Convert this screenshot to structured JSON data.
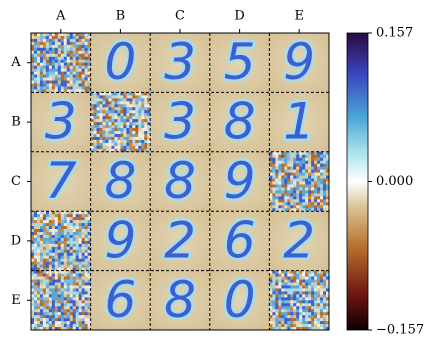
{
  "chart_data": {
    "type": "image_grid",
    "x_categories": [
      "A",
      "B",
      "C",
      "D",
      "E"
    ],
    "y_categories": [
      "A",
      "B",
      "C",
      "D",
      "E"
    ],
    "cells": [
      [
        null,
        "0",
        "3",
        "5",
        "9"
      ],
      [
        "3",
        null,
        "3",
        "8",
        "1"
      ],
      [
        "7",
        "8",
        "8",
        "9",
        null
      ],
      [
        null,
        "9",
        "2",
        "6",
        "2"
      ],
      [
        null,
        "6",
        "8",
        "0",
        null
      ]
    ],
    "colorbar": {
      "lim": [
        -0.157,
        0.157
      ],
      "ticks": [
        0.157,
        {
          "value": 0,
          "label": "0.000"
        },
        {
          "value": -0.157,
          "label": "−0.157"
        }
      ]
    }
  }
}
